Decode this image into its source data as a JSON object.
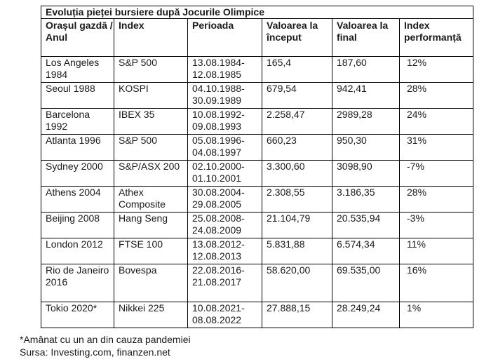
{
  "title": "Evoluția pieței bursiere după Jocurile Olimpice",
  "headers": [
    "Orașul gazdă / Anul",
    "Index",
    "Perioada",
    "Valoarea la început",
    "Valoarea la final",
    "Index performanță"
  ],
  "rows": [
    {
      "city": "Los Angeles 1984",
      "index": "S&P 500",
      "period": "13.08.1984-12.08.1985",
      "start": "165,4",
      "end": "187,60",
      "perf": "12%"
    },
    {
      "city": "Seoul 1988",
      "index": "KOSPI",
      "period": "04.10.1988-30.09.1989",
      "start": "679,54",
      "end": "942,41",
      "perf": "28%"
    },
    {
      "city": "Barcelona 1992",
      "index": "IBEX 35",
      "period": "10.08.1992-09.08.1993",
      "start": "2.258,47",
      "end": "2989,28",
      "perf": "24%"
    },
    {
      "city": "Atlanta 1996",
      "index": "S&P 500",
      "period": "05.08.1996-04.08.1997",
      "start": "660,23",
      "end": "950,30",
      "perf": "31%"
    },
    {
      "city": "Sydney 2000",
      "index": "S&P/ASX 200",
      "period": "02.10.2000-01.10.2001",
      "start": "3.300,60",
      "end": "3098,90",
      "perf": "-7%"
    },
    {
      "city": "Athens 2004",
      "index": "Athex Composite",
      "period": "30.08.2004-29.08.2005",
      "start": "2.308,55",
      "end": "3.186,35",
      "perf": "28%"
    },
    {
      "city": "Beijing 2008",
      "index": "Hang Seng",
      "period": "25.08.2008-24.08.2009",
      "start": "21.104,79",
      "end": "20.535,94",
      "perf": "-3%"
    },
    {
      "city": "London 2012",
      "index": "FTSE 100",
      "period": "13.08.2012-12.08.2013",
      "start": "5.831,88",
      "end": "6.574,34",
      "perf": "11%"
    },
    {
      "city": "Rio de Janeiro 2016",
      "index": "Bovespa",
      "period": "22.08.2016-21.08.2017",
      "start": "58.620,00",
      "end": "69.535,00",
      "perf": "16%"
    },
    {
      "city": "Tokio 2020*",
      "index": "Nikkei 225",
      "period": "10.08.2021-08.08.2022",
      "start": "27.888,15",
      "end": "28.249,24",
      "perf": "1%"
    }
  ],
  "footnote": "*Amânat cu un an din cauza pandemiei",
  "source": "Sursa: Investing.com, finanzen.net"
}
